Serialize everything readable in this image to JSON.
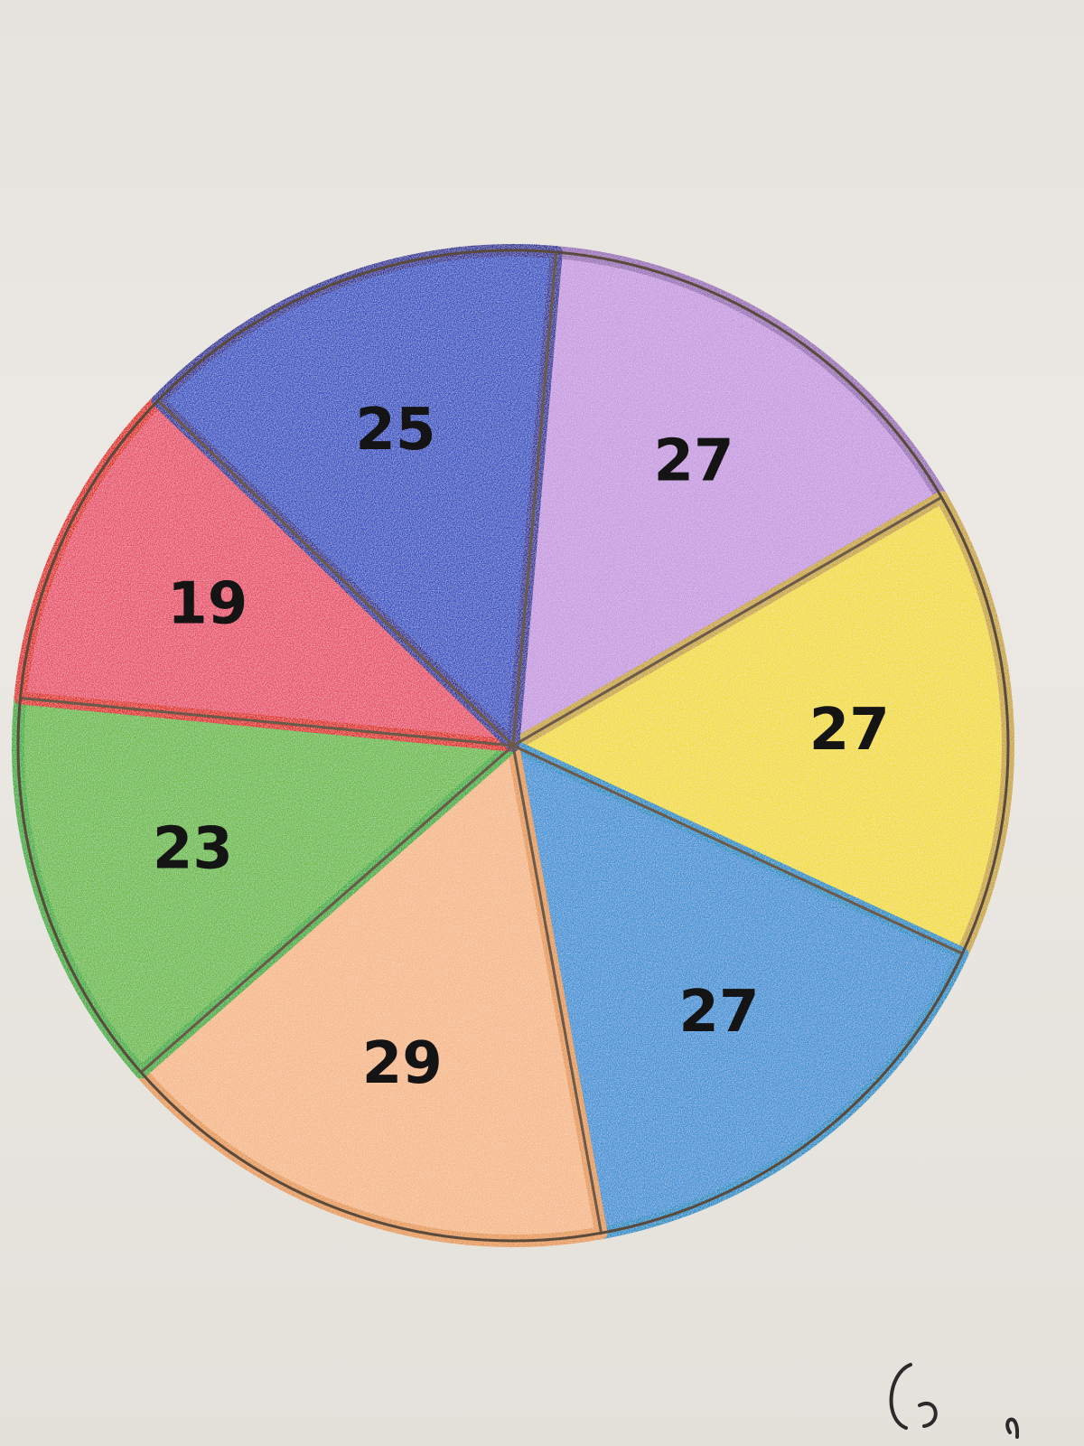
{
  "chart_data": {
    "type": "pie",
    "title": "",
    "labels": [
      "27",
      "27",
      "27",
      "29",
      "23",
      "19",
      "25"
    ],
    "values": [
      27,
      27,
      27,
      29,
      23,
      19,
      25
    ],
    "colors": [
      "#c79be0",
      "#f2dc3c",
      "#3f93d6",
      "#f6b98a",
      "#6cbc4a",
      "#e8506a",
      "#3552c4"
    ],
    "outline_colors": [
      "#9a6fb8",
      "#c9a63a",
      "#1f8fc7",
      "#e79a55",
      "#3fae3a",
      "#e0261e",
      "#2f2f9a"
    ],
    "start_angle_deg": -85,
    "direction": "clockwise"
  }
}
